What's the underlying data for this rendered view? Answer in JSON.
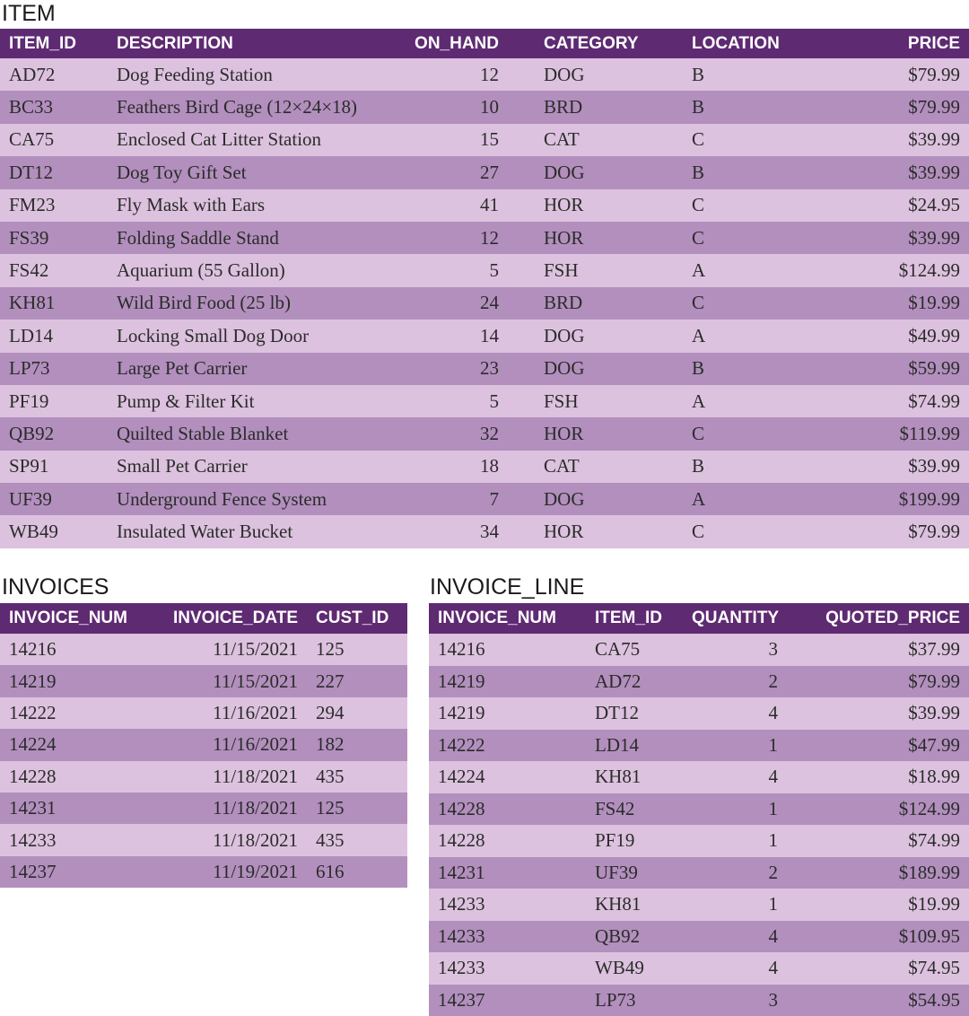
{
  "item": {
    "title": "ITEM",
    "columns": [
      "ITEM_ID",
      "DESCRIPTION",
      "ON_HAND",
      "CATEGORY",
      "LOCATION",
      "PRICE"
    ],
    "rows": [
      [
        "AD72",
        "Dog Feeding Station",
        "12",
        "DOG",
        "B",
        "$79.99"
      ],
      [
        "BC33",
        "Feathers Bird Cage (12×24×18)",
        "10",
        "BRD",
        "B",
        "$79.99"
      ],
      [
        "CA75",
        "Enclosed Cat Litter Station",
        "15",
        "CAT",
        "C",
        "$39.99"
      ],
      [
        "DT12",
        "Dog Toy Gift Set",
        "27",
        "DOG",
        "B",
        "$39.99"
      ],
      [
        "FM23",
        "Fly Mask with Ears",
        "41",
        "HOR",
        "C",
        "$24.95"
      ],
      [
        "FS39",
        "Folding Saddle Stand",
        "12",
        "HOR",
        "C",
        "$39.99"
      ],
      [
        "FS42",
        "Aquarium (55 Gallon)",
        "5",
        "FSH",
        "A",
        "$124.99"
      ],
      [
        "KH81",
        "Wild Bird Food (25 lb)",
        "24",
        "BRD",
        "C",
        "$19.99"
      ],
      [
        "LD14",
        "Locking Small Dog Door",
        "14",
        "DOG",
        "A",
        "$49.99"
      ],
      [
        "LP73",
        "Large Pet Carrier",
        "23",
        "DOG",
        "B",
        "$59.99"
      ],
      [
        "PF19",
        "Pump & Filter Kit",
        "5",
        "FSH",
        "A",
        "$74.99"
      ],
      [
        "QB92",
        "Quilted Stable Blanket",
        "32",
        "HOR",
        "C",
        "$119.99"
      ],
      [
        "SP91",
        "Small Pet Carrier",
        "18",
        "CAT",
        "B",
        "$39.99"
      ],
      [
        "UF39",
        "Underground Fence System",
        "7",
        "DOG",
        "A",
        "$199.99"
      ],
      [
        "WB49",
        "Insulated Water Bucket",
        "34",
        "HOR",
        "C",
        "$79.99"
      ]
    ]
  },
  "invoices": {
    "title": "INVOICES",
    "columns": [
      "INVOICE_NUM",
      "INVOICE_DATE",
      "CUST_ID"
    ],
    "rows": [
      [
        "14216",
        "11/15/2021",
        "125"
      ],
      [
        "14219",
        "11/15/2021",
        "227"
      ],
      [
        "14222",
        "11/16/2021",
        "294"
      ],
      [
        "14224",
        "11/16/2021",
        "182"
      ],
      [
        "14228",
        "11/18/2021",
        "435"
      ],
      [
        "14231",
        "11/18/2021",
        "125"
      ],
      [
        "14233",
        "11/18/2021",
        "435"
      ],
      [
        "14237",
        "11/19/2021",
        "616"
      ]
    ]
  },
  "invoice_line": {
    "title": "INVOICE_LINE",
    "columns": [
      "INVOICE_NUM",
      "ITEM_ID",
      "QUANTITY",
      "QUOTED_PRICE"
    ],
    "rows": [
      [
        "14216",
        "CA75",
        "3",
        "$37.99"
      ],
      [
        "14219",
        "AD72",
        "2",
        "$79.99"
      ],
      [
        "14219",
        "DT12",
        "4",
        "$39.99"
      ],
      [
        "14222",
        "LD14",
        "1",
        "$47.99"
      ],
      [
        "14224",
        "KH81",
        "4",
        "$18.99"
      ],
      [
        "14228",
        "FS42",
        "1",
        "$124.99"
      ],
      [
        "14228",
        "PF19",
        "1",
        "$74.99"
      ],
      [
        "14231",
        "UF39",
        "2",
        "$189.99"
      ],
      [
        "14233",
        "KH81",
        "1",
        "$19.99"
      ],
      [
        "14233",
        "QB92",
        "4",
        "$109.95"
      ],
      [
        "14233",
        "WB49",
        "4",
        "$74.95"
      ],
      [
        "14237",
        "LP73",
        "3",
        "$54.95"
      ]
    ]
  },
  "colors": {
    "header_bg": "#5e2a72",
    "header_text": "#ffffff",
    "row_light": "#dcc2de",
    "row_dark": "#b28fbd"
  }
}
